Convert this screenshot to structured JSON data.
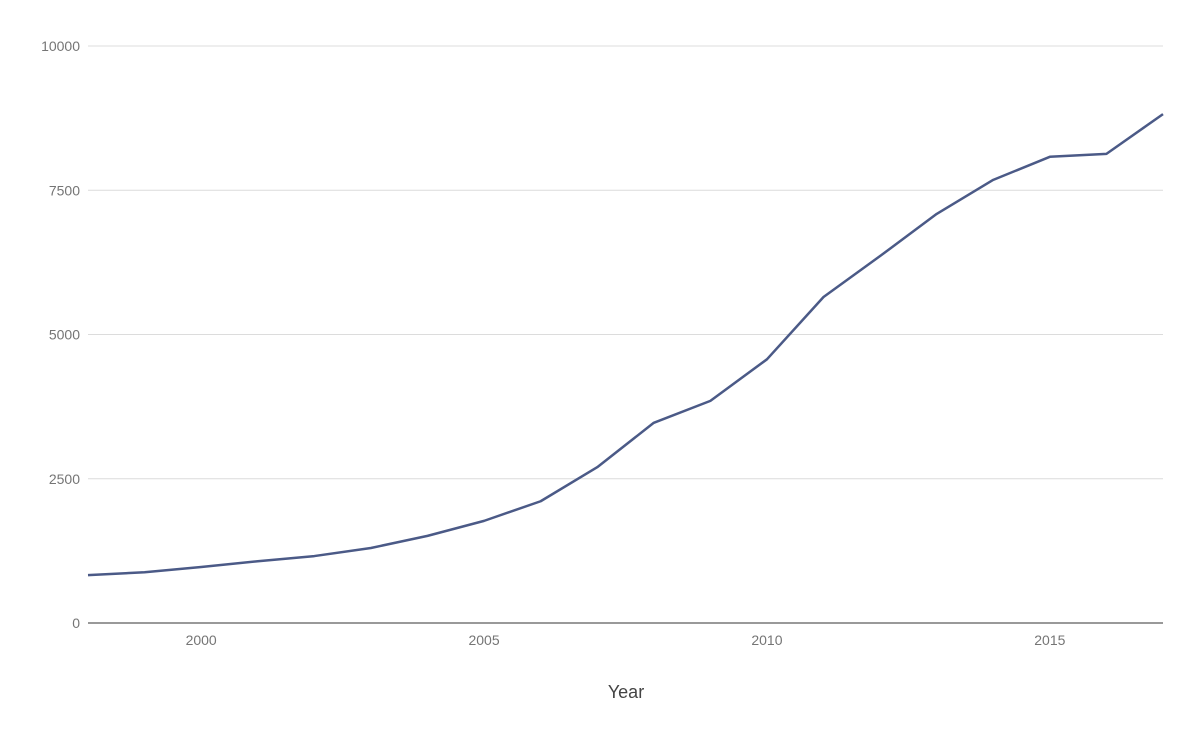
{
  "chart_data": {
    "type": "line",
    "title": "",
    "xlabel": "Year",
    "ylabel": "",
    "xlim": [
      1998,
      2017
    ],
    "ylim": [
      0,
      10000
    ],
    "x_ticks": [
      "2000",
      "2005",
      "2010",
      "2015"
    ],
    "y_ticks": [
      "0",
      "2500",
      "5000",
      "7500",
      "10000"
    ],
    "grid": true,
    "line_color": "#4b5a87",
    "series": [
      {
        "x": [
          1998,
          1999,
          2000,
          2001,
          2002,
          2003,
          2004,
          2005,
          2006,
          2007,
          2008,
          2009,
          2010,
          2011,
          2012,
          2013,
          2014,
          2015,
          2016,
          2017
        ],
        "values": [
          830,
          880,
          970,
          1070,
          1160,
          1300,
          1510,
          1770,
          2110,
          2700,
          3470,
          3850,
          4570,
          5650,
          6360,
          7090,
          7680,
          8080,
          8130,
          8820
        ]
      }
    ]
  }
}
